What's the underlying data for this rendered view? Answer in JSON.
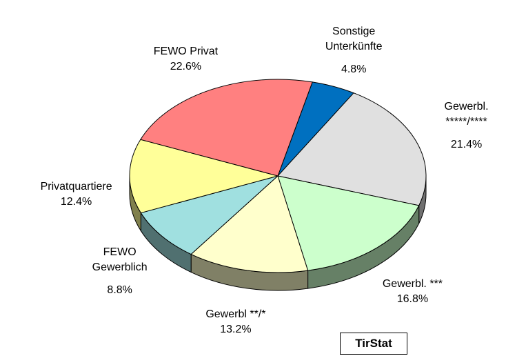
{
  "chart_data": {
    "type": "pie",
    "categories": [
      "Sonstige\nUnterkünfte",
      "Gewerbl.\n*****/****",
      "Gewerbl. ***",
      "Gewerbl **/*",
      "FEWO\nGewerblich",
      "Privatquartiere",
      "FEWO Privat"
    ],
    "values": [
      4.8,
      21.4,
      16.8,
      13.2,
      8.8,
      12.4,
      22.6
    ],
    "value_labels": [
      "4.8%",
      "21.4%",
      "16.8%",
      "13.2%",
      "8.8%",
      "12.4%",
      "22.6%"
    ],
    "colors": [
      "#0070c0",
      "#e0e0e0",
      "#ccffcc",
      "#ffffcc",
      "#a0e0e0",
      "#ffff99",
      "#ff8080"
    ],
    "annotation": "TirStat"
  }
}
